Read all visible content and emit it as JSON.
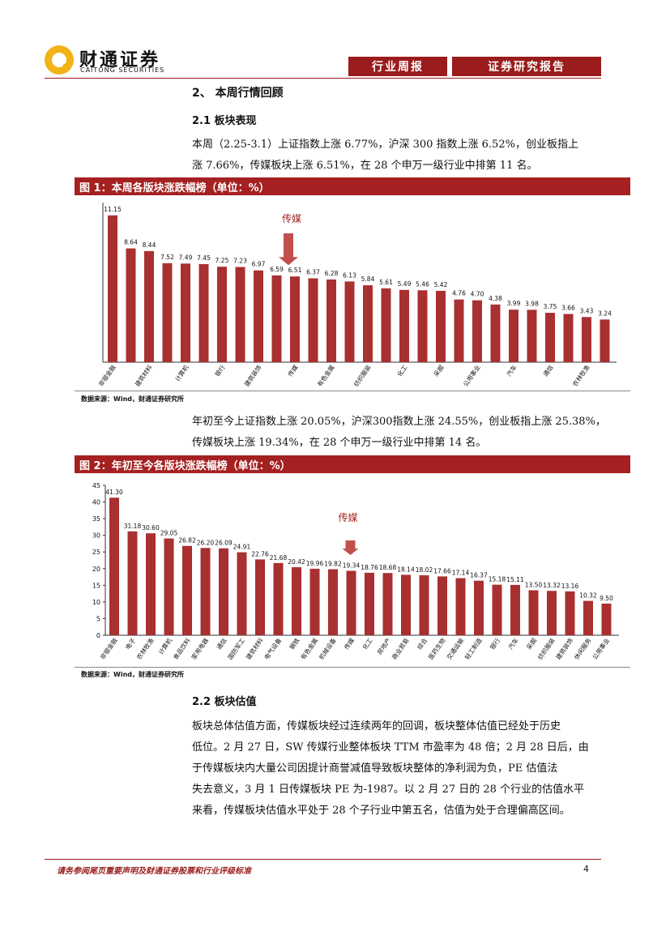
{
  "header": {
    "logo_name": "财通证券",
    "logo_en": "CAITONG SECURITIES",
    "tag_left": "行业周报",
    "tag_right": "证券研究报告"
  },
  "section": {
    "title": "2、 本周行情回顾",
    "sub1": "2.1  板块表现",
    "para1_line1": "本周（2.25-3.1）上证指数上涨 6.77%，沪深 300 指数上涨 6.52%，创业板指上",
    "para1_line2": "涨 7.66%，传媒板块上涨 6.51%，在 28 个申万一级行业中排第 11 名。",
    "para2_line1": "年初至今上证指数上涨 20.05%，沪深300指数上涨 24.55%，创业板指上涨 25.38%，",
    "para2_line2": "传媒板块上涨 19.34%，在 28 个申万一级行业中排第 14 名。",
    "sub2": "2.2  板块估值",
    "para3": [
      "板块总体估值方面，传媒板块经过连续两年的回调，板块整体估值已经处于历史",
      "低位。2 月 27 日，SW 传媒行业整体板块 TTM 市盈率为 48 倍；2 月 28 日后，由",
      "于传媒板块内大量公司因提计商誉减值导致板块整体的净利润为负，PE 估值法",
      "失去意义，3 月 1 日传媒板块 PE 为-1987。以 2 月 27 日的 28 个行业的估值水平",
      "来看，传媒板块估值水平处于 28 个子行业中第五名，估值为处于合理偏高区间。"
    ]
  },
  "figure1": {
    "title": "图 1：本周各版块涨跌幅榜（单位：%）",
    "source": "数据来源：Wind，财通证券研究所",
    "annotation": "传媒"
  },
  "figure2": {
    "title": "图 2：年初至今各版块涨跌幅榜（单位：%）",
    "source": "数据来源：Wind，财通证券研究所",
    "annotation": "传媒"
  },
  "footer": {
    "text": "请务参阅尾页重要声明及财通证券股票和行业评级标准",
    "page": "4"
  },
  "colors": {
    "accent": "#9a1c1c",
    "bar": "#a93030",
    "logo": "#f2b318"
  },
  "chart_data": [
    {
      "type": "bar",
      "values": [
        11.15,
        8.64,
        8.44,
        7.52,
        7.49,
        7.45,
        7.25,
        7.23,
        6.97,
        6.59,
        6.51,
        6.37,
        6.28,
        6.13,
        5.84,
        5.61,
        5.49,
        5.46,
        5.42,
        4.76,
        4.7,
        4.38,
        3.99,
        3.98,
        3.75,
        3.66,
        3.43,
        3.24
      ],
      "tick_labels": [
        "非银金融",
        "建筑材料",
        "计算机",
        "银行",
        "建筑装饰",
        "传媒",
        "有色金属",
        "纺织服装",
        "化工",
        "采掘",
        "公用事业",
        "汽车",
        "通信",
        "农林牧渔"
      ],
      "tick_label_index": [
        0,
        2,
        4,
        6,
        8,
        10,
        12,
        14,
        16,
        18,
        20,
        22,
        24,
        26
      ],
      "annotation": "传媒",
      "annotation_index": 10
    },
    {
      "type": "bar",
      "categories": [
        "非银金融",
        "电子",
        "农林牧渔",
        "计算机",
        "食品饮料",
        "家用电器",
        "通信",
        "国防军工",
        "建筑材料",
        "电气设备",
        "钢铁",
        "有色金属",
        "机械设备",
        "传媒",
        "化工",
        "房地产",
        "商业贸易",
        "综合",
        "医药生物",
        "交通运输",
        "轻工制造",
        "银行",
        "汽车",
        "采掘",
        "纺织服装",
        "建筑装饰",
        "休闲服务",
        "公用事业"
      ],
      "values": [
        41.3,
        31.18,
        30.6,
        29.05,
        26.82,
        26.2,
        26.09,
        24.91,
        22.76,
        21.68,
        20.42,
        19.96,
        19.82,
        19.34,
        18.76,
        18.68,
        18.14,
        18.02,
        17.66,
        17.14,
        16.37,
        15.18,
        15.11,
        13.5,
        13.32,
        13.16,
        10.32,
        9.5
      ],
      "ylim": [
        0,
        45
      ],
      "yticks": [
        0,
        5,
        10,
        15,
        20,
        25,
        30,
        35,
        40,
        45
      ],
      "annotation": "传媒",
      "annotation_index": 13
    }
  ]
}
